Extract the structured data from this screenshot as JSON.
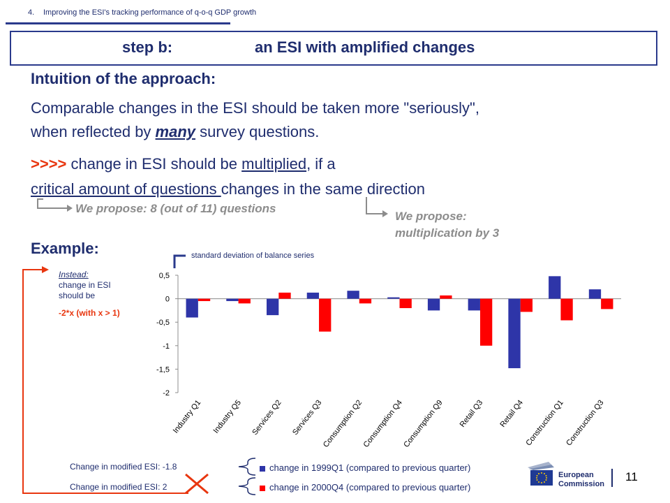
{
  "header": {
    "number": "4.",
    "text": "Improving the ESI's tracking performance of q-o-q GDP growth"
  },
  "step": {
    "label": "step b:",
    "title": "an ESI with amplified changes"
  },
  "intuition_heading": "Intuition of the approach:",
  "body": {
    "line1": "Comparable changes in the ESI should be taken more \"seriously\",",
    "line2_pre": "when reflected by ",
    "line2_em": "many",
    "line2_post": " survey questions.",
    "line3_arrows": ">>>>",
    "line3_a": " change in ESI should be ",
    "line3_u": "multiplied",
    "line3_b": ", if a",
    "line4_u": "critical amount of questions ",
    "line4_b": "changes in the same direction"
  },
  "propose1": "We propose: 8 (out of 11) questions",
  "propose2_line1": "We propose:",
  "propose2_line2": "multiplication by 3",
  "example_heading": "Example:",
  "stdev_note": "standard deviation of balance series",
  "instead": {
    "title": "Instead:",
    "l2": "change in ESI",
    "l3": "should be",
    "l4": "-2*x (with x > 1)"
  },
  "modified": {
    "m1": "Change in modified ESI: -1.8",
    "m2": "Change in modified ESI: 2"
  },
  "page_number": "11",
  "logo": {
    "line1": "European",
    "line2": "Commission"
  },
  "colors": {
    "series1": "#2e35a8",
    "series2": "#ff0000",
    "accent": "#e8360f",
    "navy": "#1f2d6e"
  },
  "chart_data": {
    "type": "bar",
    "categories": [
      "Industry Q1",
      "Industry Q5",
      "Services Q2",
      "Services Q3",
      "Consumption Q2",
      "Consumption Q4",
      "Consumption Q9",
      "Retail Q3",
      "Retail Q4",
      "Construction Q1",
      "Construction Q3"
    ],
    "series": [
      {
        "name": "change in 1999Q1 (compared to previous quarter)",
        "values": [
          -0.4,
          -0.05,
          -0.35,
          0.13,
          0.17,
          0.03,
          -0.25,
          -0.25,
          -1.48,
          0.48,
          0.2
        ]
      },
      {
        "name": "change in 2000Q4 (compared to previous quarter)",
        "values": [
          -0.05,
          -0.1,
          0.13,
          -0.7,
          -0.1,
          -0.2,
          0.07,
          -1.0,
          -0.28,
          -0.46,
          -0.22
        ]
      }
    ],
    "ylim": [
      -2,
      0.5
    ],
    "yticks": [
      "0,5",
      "0",
      "-0,5",
      "-1",
      "-1,5",
      "-2"
    ],
    "ytick_values": [
      0.5,
      0,
      -0.5,
      -1,
      -1.5,
      -2
    ],
    "grid": false,
    "legend": "bottom"
  }
}
